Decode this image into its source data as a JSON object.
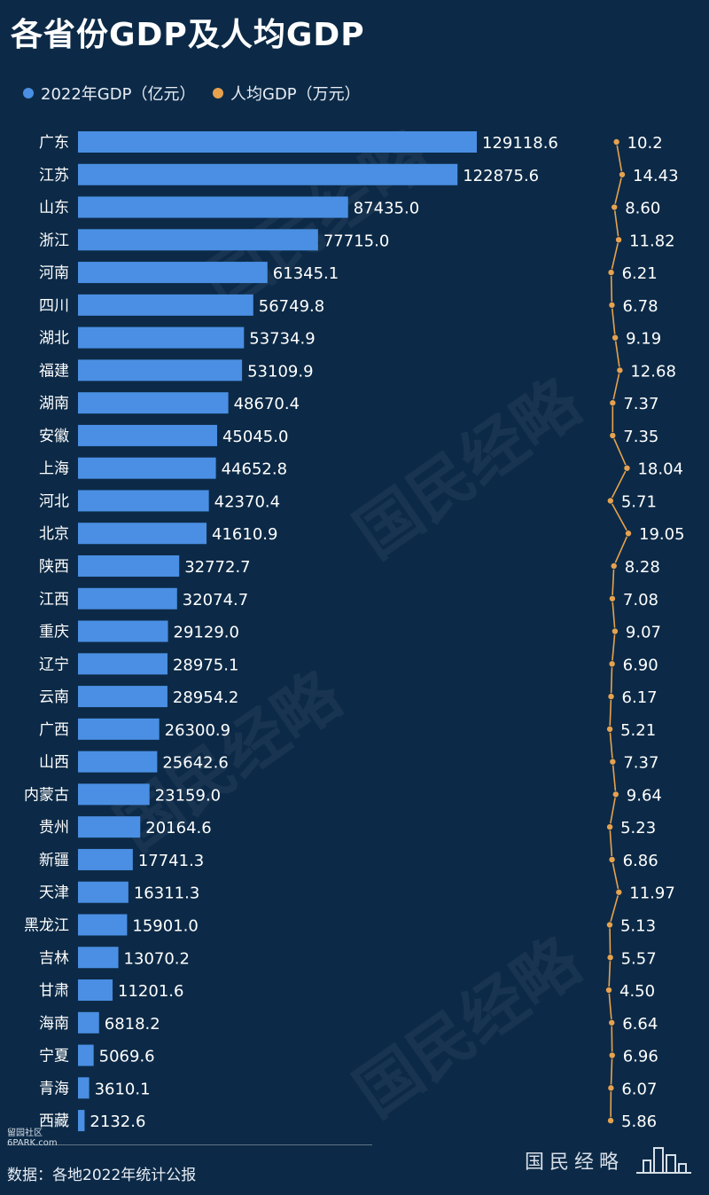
{
  "header": {
    "title": "各省份GDP及人均GDP"
  },
  "legend": {
    "gdp_label": "2022年GDP（亿元）",
    "pc_label": "人均GDP（万元）"
  },
  "colors": {
    "background": "#0c2a47",
    "bar": "#4a8fe3",
    "line": "#e7a24e"
  },
  "chart_data": {
    "type": "bar",
    "orientation": "horizontal",
    "title": "各省份GDP及人均GDP",
    "categories": [
      "广东",
      "江苏",
      "山东",
      "浙江",
      "河南",
      "四川",
      "湖北",
      "福建",
      "湖南",
      "安徽",
      "上海",
      "河北",
      "北京",
      "陕西",
      "江西",
      "重庆",
      "辽宁",
      "云南",
      "广西",
      "山西",
      "内蒙古",
      "贵州",
      "新疆",
      "天津",
      "黑龙江",
      "吉林",
      "甘肃",
      "海南",
      "宁夏",
      "青海",
      "西藏"
    ],
    "series": [
      {
        "name": "2022年GDP（亿元）",
        "type": "bar",
        "values": [
          129118.6,
          122875.6,
          87435.0,
          77715.0,
          61345.1,
          56749.8,
          53734.9,
          53109.9,
          48670.4,
          45045.0,
          44652.8,
          42370.4,
          41610.9,
          32772.7,
          32074.7,
          29129.0,
          28975.1,
          28954.2,
          26300.9,
          25642.6,
          23159.0,
          20164.6,
          17741.3,
          16311.3,
          15901.0,
          13070.2,
          11201.6,
          6818.2,
          5069.6,
          3610.1,
          2132.6
        ],
        "labels": [
          "129118.6",
          "122875.6",
          "87435.0",
          "77715.0",
          "61345.1",
          "56749.8",
          "53734.9",
          "53109.9",
          "48670.4",
          "45045.0",
          "44652.8",
          "42370.4",
          "41610.9",
          "32772.7",
          "32074.7",
          "29129.0",
          "28975.1",
          "28954.2",
          "26300.9",
          "25642.6",
          "23159.0",
          "20164.6",
          "17741.3",
          "16311.3",
          "15901.0",
          "13070.2",
          "11201.6",
          "6818.2",
          "5069.6",
          "3610.1",
          "2132.6"
        ]
      },
      {
        "name": "人均GDP（万元）",
        "type": "line",
        "values": [
          10.2,
          14.43,
          8.6,
          11.82,
          6.21,
          6.78,
          9.19,
          12.68,
          7.37,
          7.35,
          18.04,
          5.71,
          19.05,
          8.28,
          7.08,
          9.07,
          6.9,
          6.17,
          5.21,
          7.37,
          9.64,
          5.23,
          6.86,
          11.97,
          5.13,
          5.57,
          4.5,
          6.64,
          6.96,
          6.07,
          5.86
        ],
        "labels": [
          "10.2",
          "14.43",
          "8.60",
          "11.82",
          "6.21",
          "6.78",
          "9.19",
          "12.68",
          "7.37",
          "7.35",
          "18.04",
          "5.71",
          "19.05",
          "8.28",
          "7.08",
          "9.07",
          "6.90",
          "6.17",
          "5.21",
          "7.37",
          "9.64",
          "5.23",
          "6.86",
          "11.97",
          "5.13",
          "5.57",
          "4.50",
          "6.64",
          "6.96",
          "6.07",
          "5.86"
        ]
      }
    ],
    "legend_position": "top-left",
    "grid": false
  },
  "footer": {
    "source": "数据：各地2022年统计公报",
    "brand": "国民经略",
    "corner_logo_line1": "留园社区",
    "corner_logo_line2": "6PARK.com"
  }
}
